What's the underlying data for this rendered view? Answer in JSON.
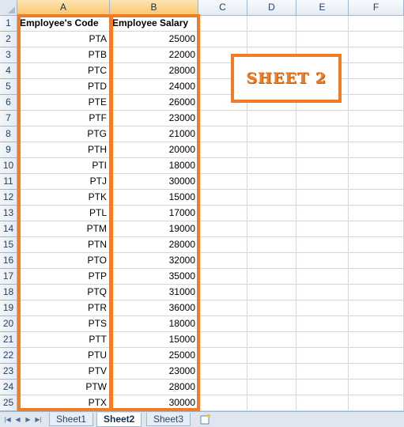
{
  "columns": [
    "A",
    "B",
    "C",
    "D",
    "E",
    "F"
  ],
  "selected_columns": [
    "A",
    "B"
  ],
  "header_row": {
    "row": "1",
    "a": "Employee's Code",
    "b": "Employee Salary"
  },
  "rows": [
    {
      "row": "2",
      "code": "PTA",
      "salary": "25000"
    },
    {
      "row": "3",
      "code": "PTB",
      "salary": "22000"
    },
    {
      "row": "4",
      "code": "PTC",
      "salary": "28000"
    },
    {
      "row": "5",
      "code": "PTD",
      "salary": "24000"
    },
    {
      "row": "6",
      "code": "PTE",
      "salary": "26000"
    },
    {
      "row": "7",
      "code": "PTF",
      "salary": "23000"
    },
    {
      "row": "8",
      "code": "PTG",
      "salary": "21000"
    },
    {
      "row": "9",
      "code": "PTH",
      "salary": "20000"
    },
    {
      "row": "10",
      "code": "PTI",
      "salary": "18000"
    },
    {
      "row": "11",
      "code": "PTJ",
      "salary": "30000"
    },
    {
      "row": "12",
      "code": "PTK",
      "salary": "15000"
    },
    {
      "row": "13",
      "code": "PTL",
      "salary": "17000"
    },
    {
      "row": "14",
      "code": "PTM",
      "salary": "19000"
    },
    {
      "row": "15",
      "code": "PTN",
      "salary": "28000"
    },
    {
      "row": "16",
      "code": "PTO",
      "salary": "32000"
    },
    {
      "row": "17",
      "code": "PTP",
      "salary": "35000"
    },
    {
      "row": "18",
      "code": "PTQ",
      "salary": "31000"
    },
    {
      "row": "19",
      "code": "PTR",
      "salary": "36000"
    },
    {
      "row": "20",
      "code": "PTS",
      "salary": "18000"
    },
    {
      "row": "21",
      "code": "PTT",
      "salary": "15000"
    },
    {
      "row": "22",
      "code": "PTU",
      "salary": "25000"
    },
    {
      "row": "23",
      "code": "PTV",
      "salary": "23000"
    },
    {
      "row": "24",
      "code": "PTW",
      "salary": "28000"
    },
    {
      "row": "25",
      "code": "PTX",
      "salary": "30000"
    }
  ],
  "annotation": {
    "label": "SHEET 2"
  },
  "tabs": [
    {
      "label": "Sheet1",
      "active": false
    },
    {
      "label": "Sheet2",
      "active": true
    },
    {
      "label": "Sheet3",
      "active": false
    }
  ],
  "nav_icons": [
    "first-sheet-icon",
    "prev-sheet-icon",
    "next-sheet-icon",
    "last-sheet-icon"
  ],
  "colors": {
    "highlight": "#f07c25",
    "selected_header": "#f9c66d",
    "grid_line": "#d0d7e5"
  }
}
